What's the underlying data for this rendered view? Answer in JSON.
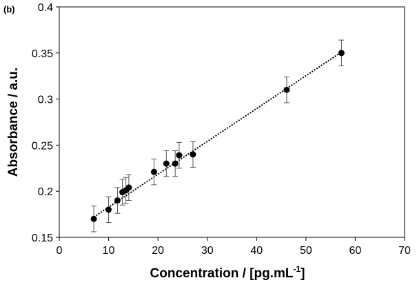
{
  "chart_data": {
    "type": "scatter",
    "panel_label": "(b)",
    "xlabel": "Concentration / [pg.mL",
    "xlabel_superscript": "-1",
    "xlabel_suffix": "]",
    "ylabel": "Absorbance / a.u.",
    "xlim": [
      0,
      70
    ],
    "ylim": [
      0.15,
      0.4
    ],
    "x_ticks": [
      0,
      10,
      20,
      30,
      40,
      50,
      60,
      70
    ],
    "x_tick_labels": [
      "0",
      "10",
      "20",
      "30",
      "40",
      "50",
      "60",
      "70"
    ],
    "y_ticks": [
      0.15,
      0.2,
      0.25,
      0.3,
      0.35,
      0.4
    ],
    "y_tick_labels": [
      "0.15",
      "0.2",
      "0.25",
      "0.3",
      "0.35",
      "0.4"
    ],
    "grid": false,
    "legend": "none",
    "series": [
      {
        "points": [
          {
            "x": 7,
            "y": 0.17,
            "err": 0.014
          },
          {
            "x": 10,
            "y": 0.18,
            "err": 0.014
          },
          {
            "x": 11.8,
            "y": 0.19,
            "err": 0.014
          },
          {
            "x": 12.8,
            "y": 0.199,
            "err": 0.014
          },
          {
            "x": 13.5,
            "y": 0.201,
            "err": 0.014
          },
          {
            "x": 14.1,
            "y": 0.204,
            "err": 0.014
          },
          {
            "x": 19.2,
            "y": 0.221,
            "err": 0.014
          },
          {
            "x": 21.7,
            "y": 0.23,
            "err": 0.014
          },
          {
            "x": 23.5,
            "y": 0.23,
            "err": 0.014
          },
          {
            "x": 24.3,
            "y": 0.239,
            "err": 0.014
          },
          {
            "x": 27.1,
            "y": 0.24,
            "err": 0.014
          },
          {
            "x": 46.1,
            "y": 0.31,
            "err": 0.014
          },
          {
            "x": 57.2,
            "y": 0.35,
            "err": 0.014
          }
        ]
      }
    ],
    "trendline": {
      "x_start": 7,
      "y_start": 0.172,
      "x_end": 57.2,
      "y_end": 0.351,
      "style": "dotted"
    },
    "colors": {
      "marker": "#000000",
      "error_bar": "#555555",
      "trendline": "#000000",
      "axis": "#000000"
    }
  }
}
